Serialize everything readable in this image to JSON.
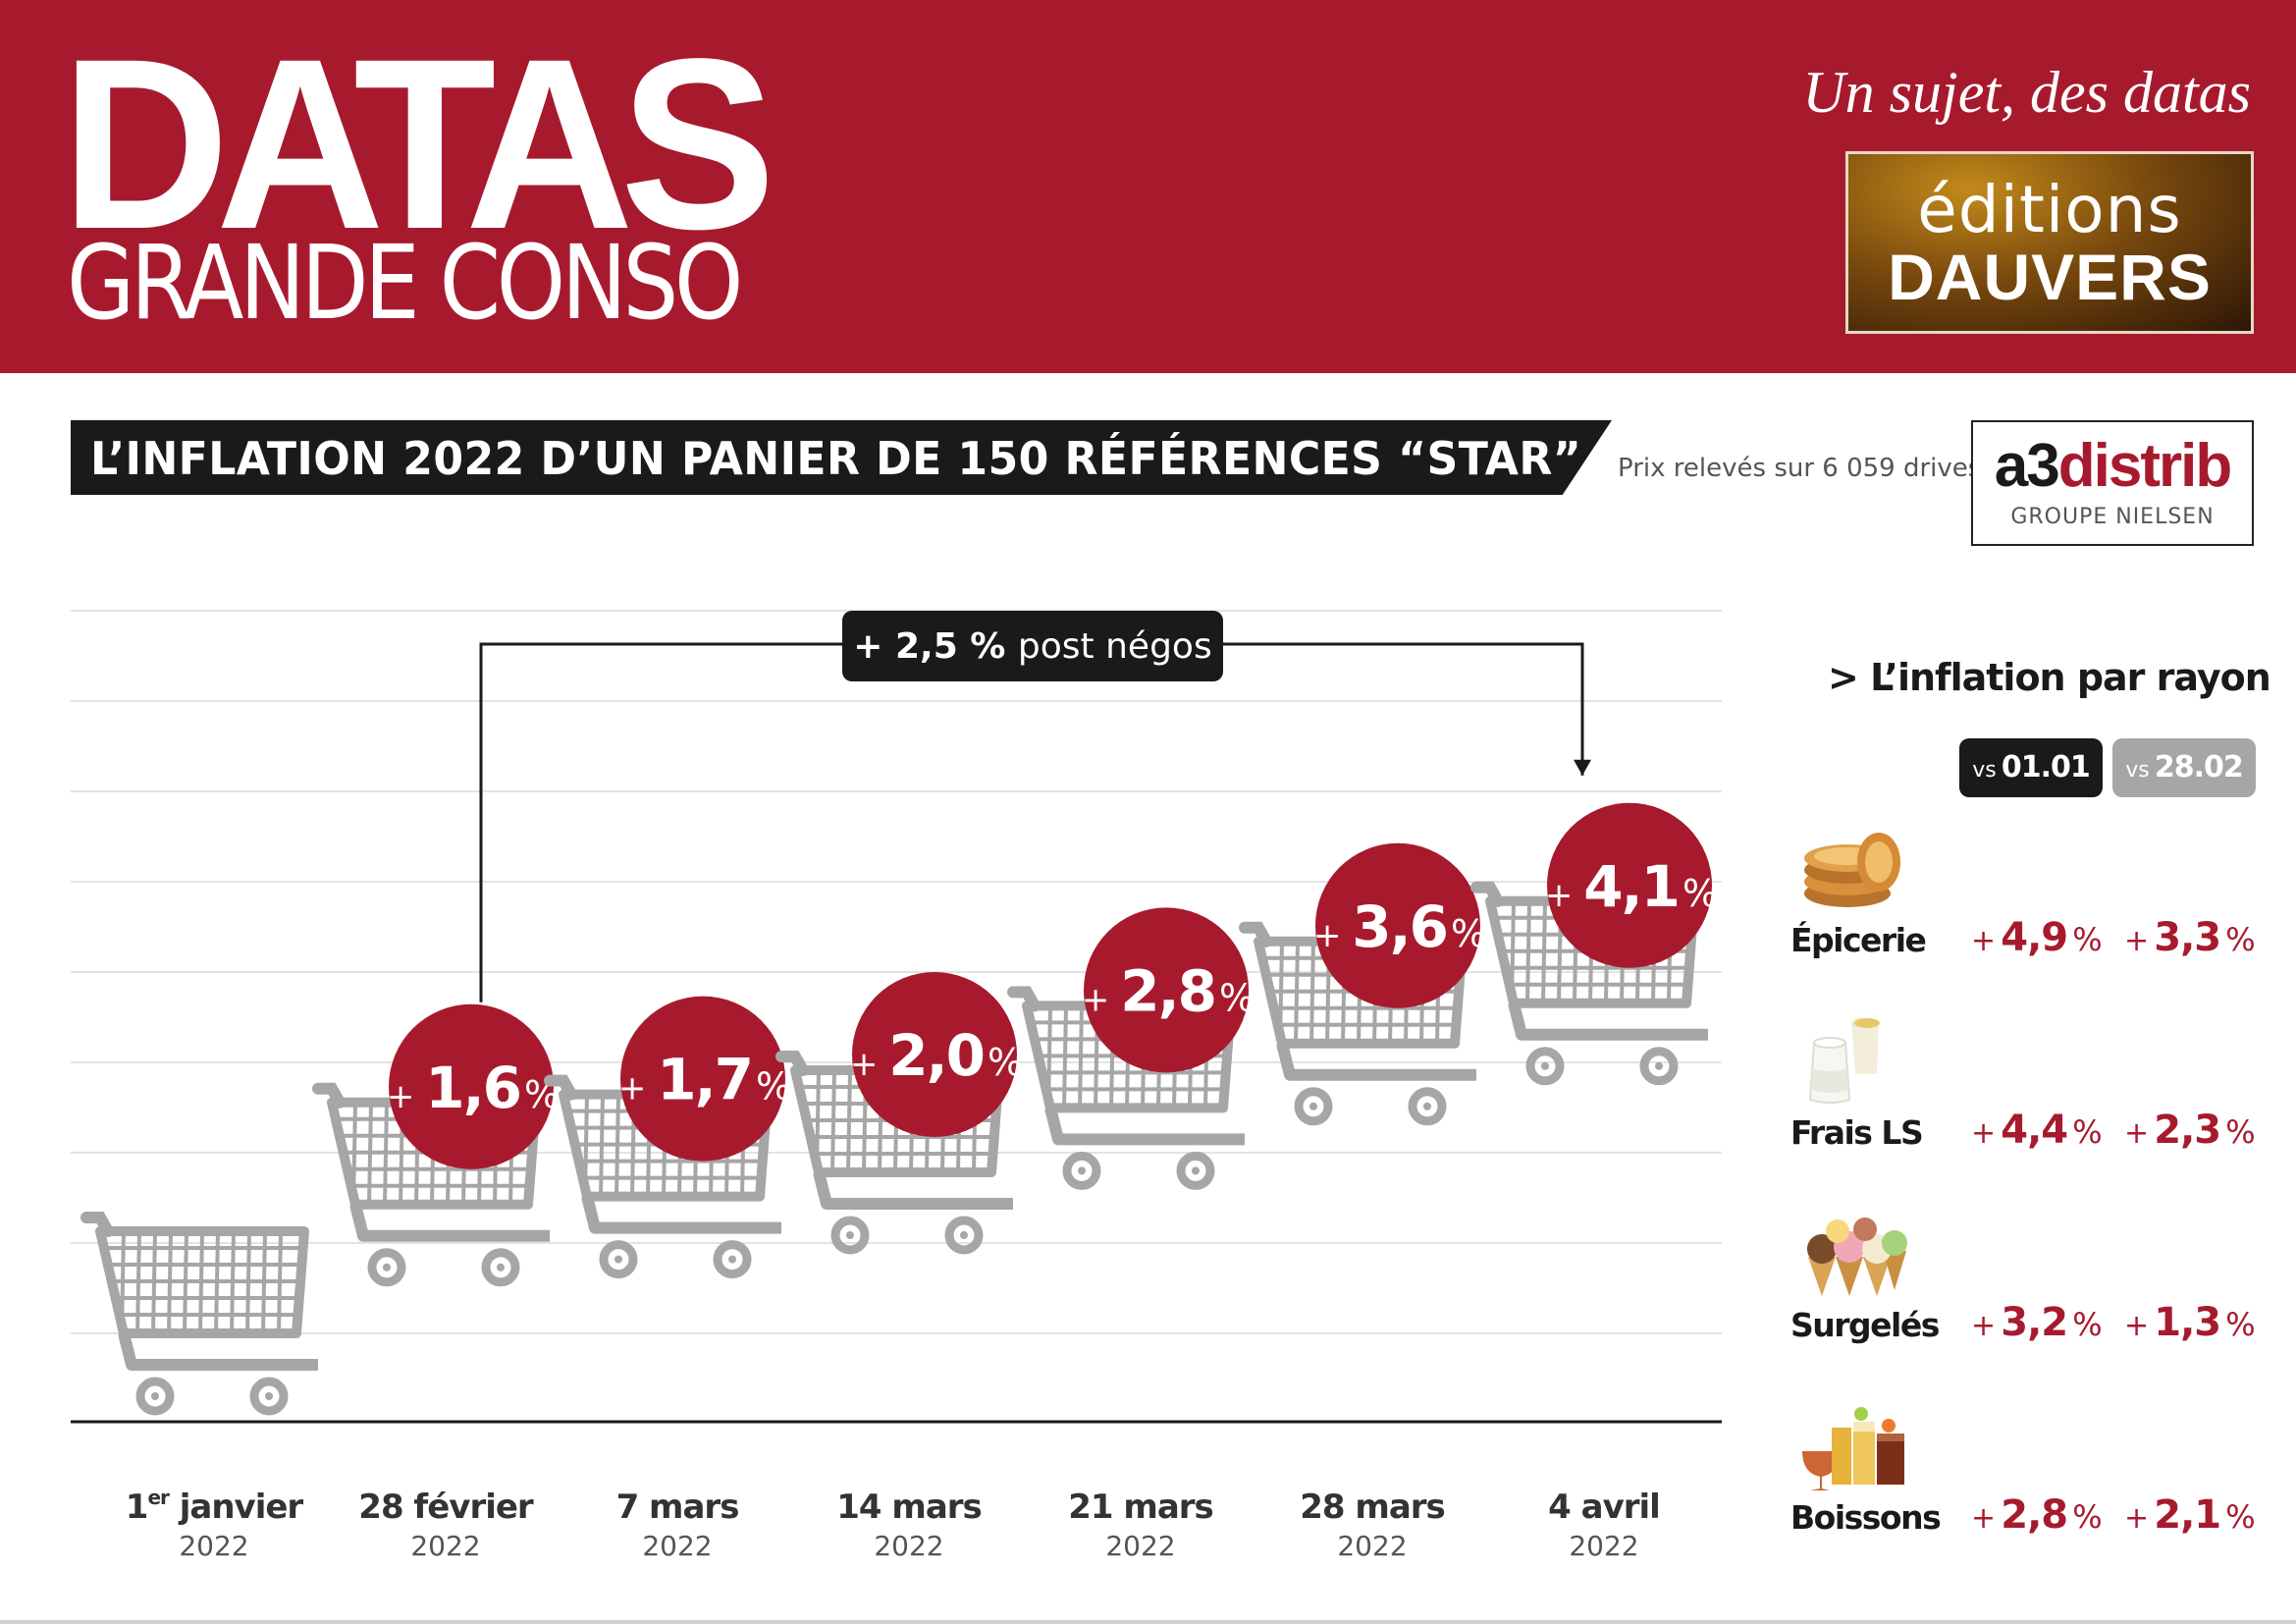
{
  "header": {
    "logo_line1": "DATAS",
    "logo_line2": "GRANDE CONSO",
    "tagline": "Un sujet, des datas",
    "publisher_line1": "éditions",
    "publisher_line2": "DAUVERS"
  },
  "title": "L’INFLATION 2022 D’UN PANIER DE 150 RÉFÉRENCES “STAR”",
  "source_note": "Prix relevés sur 6 059 drives",
  "source_logo": {
    "brand_a3": "a3",
    "brand_distrib": "distrib",
    "sub": "GROUPE NIELSEN"
  },
  "colors": {
    "brand_red": "#a71a2e",
    "dark": "#1a1a1a",
    "cart_gray": "#a6a6a6",
    "grid": "#e3e3e3"
  },
  "chart_data": {
    "type": "bar",
    "unit": "%",
    "categories": [
      {
        "date": "1er janvier",
        "date_main": "1",
        "date_sup": "er",
        "date_rest": " janvier",
        "year": "2022"
      },
      {
        "date": "28 février",
        "year": "2022"
      },
      {
        "date": "7 mars",
        "year": "2022"
      },
      {
        "date": "14 mars",
        "year": "2022"
      },
      {
        "date": "21 mars",
        "year": "2022"
      },
      {
        "date": "28 mars",
        "year": "2022"
      },
      {
        "date": "4 avril",
        "year": "2022"
      }
    ],
    "values": [
      0,
      1.6,
      1.7,
      2.0,
      2.8,
      3.6,
      4.1
    ],
    "value_labels": [
      null,
      "1,6",
      "1,7",
      "2,0",
      "2,8",
      "3,6",
      "4,1"
    ],
    "plus_sign": "+",
    "percent_sign": "%",
    "ylim": [
      0,
      5
    ],
    "grid": true,
    "mark": "shopping-cart",
    "annotation": {
      "from_index": 1,
      "to_index": 6,
      "value_text": "+ 2,5 %",
      "label_text": "post négos"
    }
  },
  "rayons": {
    "title": "> L’inflation par rayon",
    "column_headers": [
      {
        "vs": "vs",
        "date": "01.01"
      },
      {
        "vs": "vs",
        "date": "28.02"
      }
    ],
    "items": [
      {
        "name": "Épicerie",
        "icon": "biscuits-icon",
        "vs_0101": "4,9",
        "vs_2802": "3,3"
      },
      {
        "name": "Frais LS",
        "icon": "yogurt-icon",
        "vs_0101": "4,4",
        "vs_2802": "2,3"
      },
      {
        "name": "Surgelés",
        "icon": "ice-cream-icon",
        "vs_0101": "3,2",
        "vs_2802": "1,3"
      },
      {
        "name": "Boissons",
        "icon": "drinks-icon",
        "vs_0101": "2,8",
        "vs_2802": "2,1"
      }
    ],
    "plus_sign": "+",
    "percent_sign": "%"
  }
}
